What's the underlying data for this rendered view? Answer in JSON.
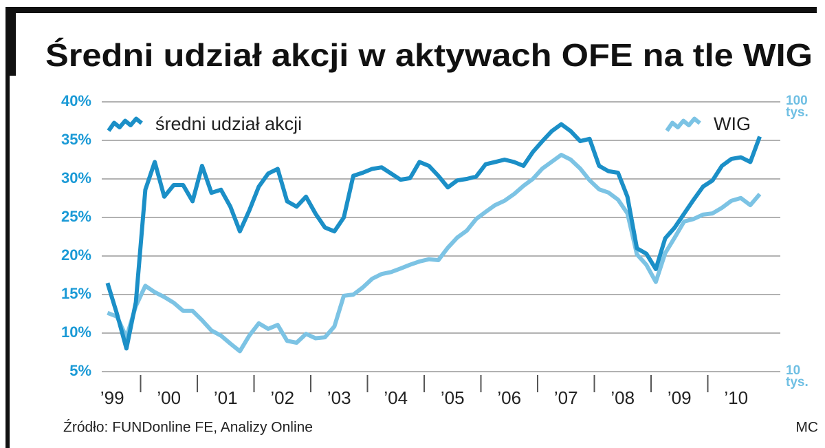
{
  "chart_data": {
    "type": "line",
    "title": "Średni udział akcji w aktywach OFE na tle WIG",
    "source": "Źródło: FUNDonline FE, Analizy Online",
    "author": "MC",
    "categories": [
      null,
      null,
      null,
      "’99",
      null,
      null,
      null,
      null,
      null,
      "’00",
      null,
      null,
      null,
      null,
      null,
      "’01",
      null,
      null,
      null,
      null,
      null,
      "’02",
      null,
      null,
      null,
      null,
      null,
      "’03",
      null,
      null,
      null,
      null,
      null,
      "’04",
      null,
      null,
      null,
      null,
      null,
      "’05",
      null,
      null,
      null,
      null,
      null,
      "’06",
      null,
      null,
      null,
      null,
      null,
      "’07",
      null,
      null,
      null,
      null,
      null,
      "’08",
      null,
      null,
      null,
      null,
      null,
      "’09",
      null,
      null,
      null,
      null,
      null,
      "’10",
      null,
      null
    ],
    "series": [
      {
        "name": "średni udział akcji",
        "color": "#1b8fc7",
        "axis": "y",
        "values": [
          null,
          null,
          16.5,
          12.5,
          8.0,
          14.0,
          28.6,
          32.2,
          27.7,
          29.2,
          29.2,
          27.1,
          31.7,
          28.2,
          28.6,
          26.4,
          23.2,
          25.9,
          29.0,
          30.7,
          31.3,
          27.1,
          26.4,
          27.7,
          25.5,
          23.7,
          23.2,
          25.0,
          30.4,
          30.8,
          31.3,
          31.5,
          30.7,
          29.9,
          30.1,
          32.2,
          31.7,
          30.4,
          28.9,
          29.8,
          30.0,
          30.3,
          31.9,
          32.2,
          32.5,
          32.2,
          31.7,
          33.5,
          34.9,
          36.2,
          37.1,
          36.2,
          34.9,
          35.2,
          31.7,
          31.0,
          30.8,
          27.7,
          21.0,
          20.3,
          18.3,
          22.3,
          23.7,
          25.5,
          27.3,
          29.0,
          29.8,
          31.7,
          32.6,
          32.8,
          32.2,
          35.5
        ]
      },
      {
        "name": "WIG",
        "color": "#7cc3e4",
        "axis": "y2",
        "values": [
          null,
          null,
          16500,
          16000,
          13400,
          17500,
          20800,
          19700,
          18900,
          18000,
          16800,
          16800,
          15500,
          14200,
          13600,
          12700,
          11900,
          13600,
          15100,
          14400,
          14900,
          13000,
          12800,
          13800,
          13300,
          13400,
          14700,
          19100,
          19300,
          20500,
          22100,
          23000,
          23400,
          24100,
          24900,
          25600,
          26100,
          25900,
          28800,
          31400,
          33300,
          36800,
          39100,
          41400,
          43000,
          45500,
          48800,
          51800,
          56600,
          60000,
          63600,
          61100,
          56600,
          51200,
          47400,
          46100,
          43400,
          38600,
          27200,
          24900,
          21500,
          27500,
          31400,
          36000,
          36800,
          38200,
          38600,
          40500,
          43000,
          44000,
          41400,
          45500
        ]
      }
    ],
    "ylim": [
      5,
      40
    ],
    "yticks": [
      {
        "value": 5,
        "label": "5%"
      },
      {
        "value": 10,
        "label": "10%"
      },
      {
        "value": 15,
        "label": "15%"
      },
      {
        "value": 20,
        "label": "20%"
      },
      {
        "value": 25,
        "label": "25%"
      },
      {
        "value": 30,
        "label": "30%"
      },
      {
        "value": 35,
        "label": "35%"
      },
      {
        "value": 40,
        "label": "40%"
      }
    ],
    "y2lim": [
      10000,
      100000
    ],
    "y2ticks": [
      {
        "value": 10000,
        "label": "10 tys."
      },
      {
        "value": 100000,
        "label": "100 tys."
      }
    ],
    "y2scale": "log",
    "grid": true
  }
}
